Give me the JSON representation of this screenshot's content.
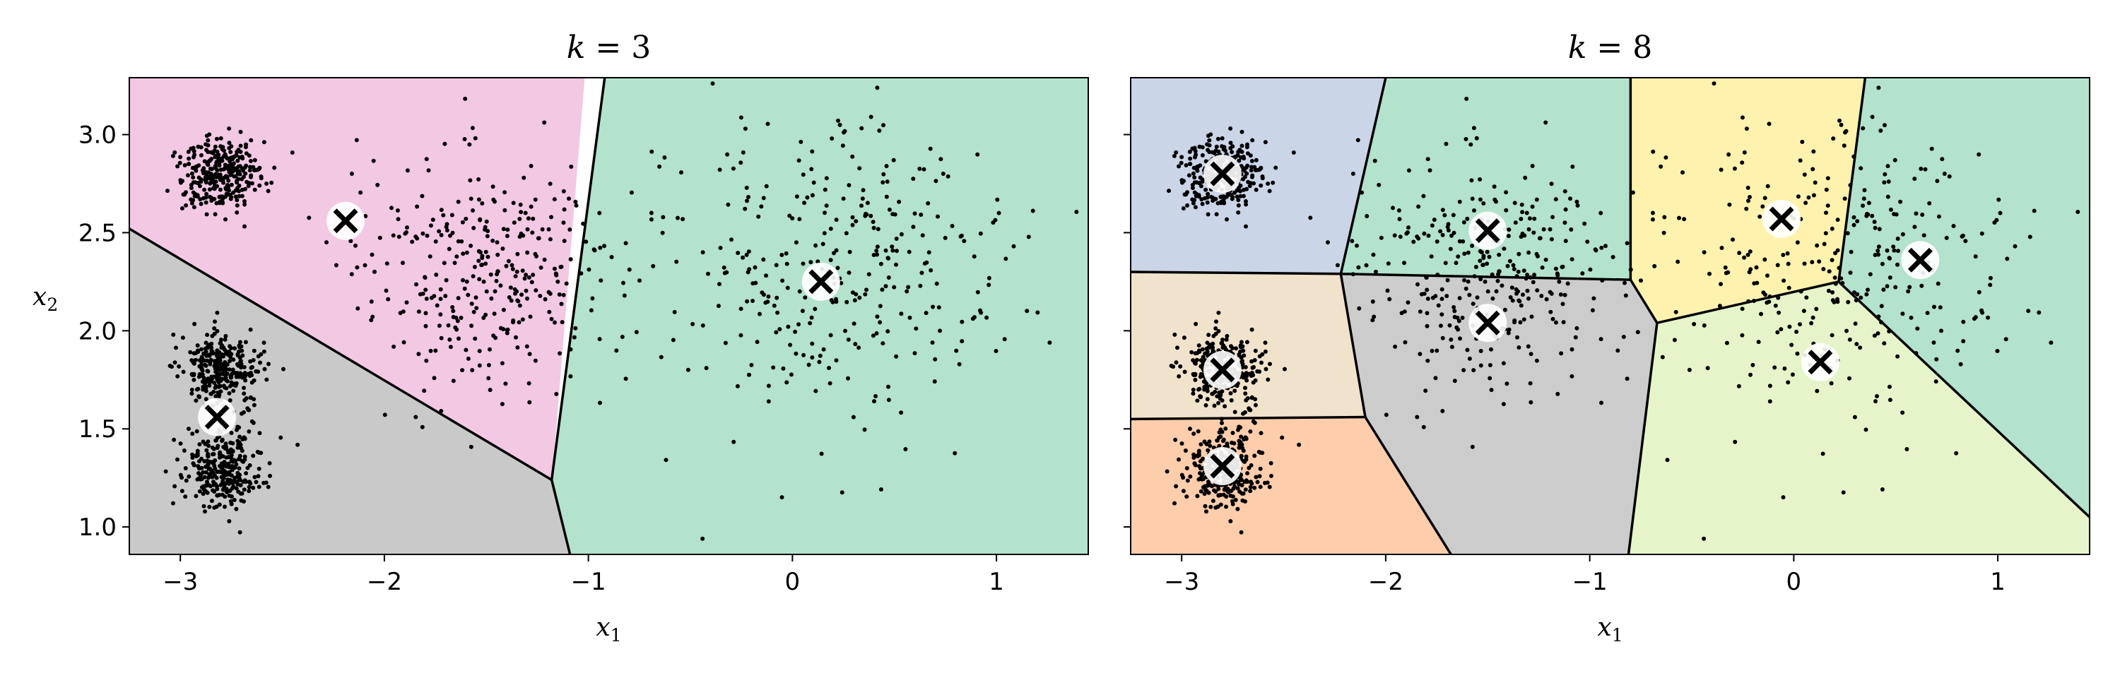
{
  "chart_data": [
    {
      "type": "scatter",
      "title": "k = 3",
      "xlabel": "x1",
      "ylabel": "x2",
      "xlim": [
        -3.25,
        1.45
      ],
      "ylim": [
        0.86,
        3.29
      ],
      "xticks": [
        -3,
        -2,
        -1,
        0,
        1
      ],
      "yticks": [
        1.0,
        1.5,
        2.0,
        2.5,
        3.0
      ],
      "xtick_labels": [
        "−3",
        "−2",
        "−1",
        "0",
        "1"
      ],
      "ytick_labels": [
        "1.0",
        "1.5",
        "2.0",
        "2.5",
        "3.0"
      ],
      "show_ytick_labels": true,
      "regions": [
        {
          "color": "#f2c8e3",
          "polygon": [
            [
              -3.25,
              2.52
            ],
            [
              -1.18,
              1.24
            ],
            [
              -1.02,
              3.29
            ],
            [
              -3.25,
              3.29
            ]
          ]
        },
        {
          "color": "#c9c9c9",
          "polygon": [
            [
              -3.25,
              0.86
            ],
            [
              -1.09,
              0.86
            ],
            [
              -1.18,
              1.24
            ],
            [
              -3.25,
              2.52
            ]
          ]
        },
        {
          "color": "#b3e2cd",
          "polygon": [
            [
              -0.92,
              3.29
            ],
            [
              -1.18,
              1.24
            ],
            [
              -1.09,
              0.86
            ],
            [
              1.45,
              0.86
            ],
            [
              1.45,
              3.29
            ]
          ]
        }
      ],
      "boundaries": [
        [
          [
            -3.25,
            2.52
          ],
          [
            -1.18,
            1.24
          ]
        ],
        [
          [
            -1.18,
            1.24
          ],
          [
            -0.92,
            3.29
          ]
        ],
        [
          [
            -1.18,
            1.24
          ],
          [
            -1.09,
            0.86
          ]
        ]
      ],
      "centroids": [
        [
          -2.19,
          2.56
        ],
        [
          -2.82,
          1.56
        ],
        [
          0.14,
          2.25
        ]
      ],
      "blobs": [
        {
          "center": [
            -2.8,
            2.8
          ],
          "std": [
            0.1,
            0.1
          ],
          "n": 300
        },
        {
          "center": [
            -2.8,
            1.8
          ],
          "std": [
            0.1,
            0.1
          ],
          "n": 300
        },
        {
          "center": [
            -2.8,
            1.3
          ],
          "std": [
            0.1,
            0.1
          ],
          "n": 300
        },
        {
          "center": [
            -1.5,
            2.3
          ],
          "std": [
            0.3,
            0.3
          ],
          "n": 330
        },
        {
          "center": [
            0.2,
            2.3
          ],
          "std": [
            0.45,
            0.4
          ],
          "n": 330
        }
      ]
    },
    {
      "type": "scatter",
      "title": "k = 8",
      "xlabel": "x1",
      "ylabel": "",
      "xlim": [
        -3.25,
        1.45
      ],
      "ylim": [
        0.86,
        3.29
      ],
      "xticks": [
        -3,
        -2,
        -1,
        0,
        1
      ],
      "yticks": [
        1.0,
        1.5,
        2.0,
        2.5,
        3.0
      ],
      "xtick_labels": [
        "−3",
        "−2",
        "−1",
        "0",
        "1"
      ],
      "ytick_labels": [
        "1.0",
        "1.5",
        "2.0",
        "2.5",
        "3.0"
      ],
      "show_ytick_labels": false,
      "regions": [
        {
          "color": "#cbd5e8",
          "polygon": [
            [
              -3.25,
              3.29
            ],
            [
              -2.0,
              3.29
            ],
            [
              -2.22,
              2.29
            ],
            [
              -3.25,
              2.3
            ]
          ]
        },
        {
          "color": "#b3e2cd",
          "polygon": [
            [
              -2.0,
              3.29
            ],
            [
              -0.8,
              3.29
            ],
            [
              -0.8,
              2.26
            ],
            [
              -2.22,
              2.29
            ]
          ]
        },
        {
          "color": "#fff2ae",
          "polygon": [
            [
              -0.8,
              3.29
            ],
            [
              0.35,
              3.29
            ],
            [
              0.22,
              2.25
            ],
            [
              -0.67,
              2.04
            ],
            [
              -0.8,
              2.26
            ]
          ]
        },
        {
          "color": "#b3e2cd",
          "polygon": [
            [
              0.35,
              3.29
            ],
            [
              1.45,
              3.29
            ],
            [
              1.45,
              1.05
            ],
            [
              0.22,
              2.25
            ]
          ]
        },
        {
          "color": "#f1e2cc",
          "polygon": [
            [
              -3.25,
              2.3
            ],
            [
              -2.22,
              2.29
            ],
            [
              -2.1,
              1.56
            ],
            [
              -3.25,
              1.55
            ]
          ]
        },
        {
          "color": "#cccccc",
          "polygon": [
            [
              -2.22,
              2.29
            ],
            [
              -0.8,
              2.26
            ],
            [
              -0.67,
              2.04
            ],
            [
              -0.81,
              0.86
            ],
            [
              -1.68,
              0.86
            ],
            [
              -2.1,
              1.56
            ]
          ]
        },
        {
          "color": "#e6f5c9",
          "polygon": [
            [
              -0.67,
              2.04
            ],
            [
              0.22,
              2.25
            ],
            [
              1.45,
              1.05
            ],
            [
              1.45,
              0.86
            ],
            [
              -0.81,
              0.86
            ]
          ]
        },
        {
          "color": "#fdcdac",
          "polygon": [
            [
              -3.25,
              1.55
            ],
            [
              -2.1,
              1.56
            ],
            [
              -1.68,
              0.86
            ],
            [
              -3.25,
              0.86
            ]
          ]
        }
      ],
      "boundaries": [
        [
          [
            -2.0,
            3.29
          ],
          [
            -2.22,
            2.29
          ]
        ],
        [
          [
            -3.25,
            2.3
          ],
          [
            -2.22,
            2.29
          ]
        ],
        [
          [
            -2.22,
            2.29
          ],
          [
            -0.8,
            2.26
          ]
        ],
        [
          [
            -2.22,
            2.29
          ],
          [
            -2.1,
            1.56
          ]
        ],
        [
          [
            -3.25,
            1.55
          ],
          [
            -2.1,
            1.56
          ]
        ],
        [
          [
            -2.1,
            1.56
          ],
          [
            -1.68,
            0.86
          ]
        ],
        [
          [
            -0.8,
            3.29
          ],
          [
            -0.8,
            2.26
          ]
        ],
        [
          [
            -0.8,
            2.26
          ],
          [
            -0.67,
            2.04
          ]
        ],
        [
          [
            -0.67,
            2.04
          ],
          [
            -0.81,
            0.86
          ]
        ],
        [
          [
            -0.67,
            2.04
          ],
          [
            0.22,
            2.25
          ]
        ],
        [
          [
            0.22,
            2.25
          ],
          [
            0.35,
            3.29
          ]
        ],
        [
          [
            0.22,
            2.25
          ],
          [
            1.45,
            1.05
          ]
        ]
      ],
      "centroids": [
        [
          -2.8,
          2.8
        ],
        [
          -2.8,
          1.8
        ],
        [
          -2.8,
          1.31
        ],
        [
          -1.5,
          2.51
        ],
        [
          -1.5,
          2.04
        ],
        [
          -0.06,
          2.57
        ],
        [
          0.13,
          1.84
        ],
        [
          0.62,
          2.36
        ]
      ],
      "blobs": [
        {
          "center": [
            -2.8,
            2.8
          ],
          "std": [
            0.1,
            0.1
          ],
          "n": 300
        },
        {
          "center": [
            -2.8,
            1.8
          ],
          "std": [
            0.1,
            0.1
          ],
          "n": 300
        },
        {
          "center": [
            -2.8,
            1.3
          ],
          "std": [
            0.1,
            0.1
          ],
          "n": 300
        },
        {
          "center": [
            -1.5,
            2.3
          ],
          "std": [
            0.3,
            0.3
          ],
          "n": 330
        },
        {
          "center": [
            0.2,
            2.3
          ],
          "std": [
            0.45,
            0.4
          ],
          "n": 330
        }
      ]
    }
  ]
}
